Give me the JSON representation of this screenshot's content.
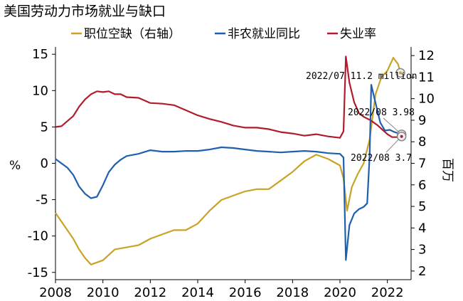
{
  "chart_data": {
    "type": "line",
    "title": "美国劳动力市场就业与缺口",
    "legend": {
      "placement": "top",
      "items": [
        {
          "name": "职位空缺（右轴）",
          "color": "#c9a227"
        },
        {
          "name": "非农就业同比",
          "color": "#1f5fad"
        },
        {
          "name": "失业率",
          "color": "#b01c2e"
        }
      ]
    },
    "x_axis": {
      "range": [
        2008,
        2023
      ],
      "ticks": [
        "2008",
        "2010",
        "2012",
        "2014",
        "2016",
        "2018",
        "2020",
        "2022"
      ]
    },
    "y_left": {
      "label": "%",
      "range": [
        -16,
        16
      ],
      "ticks": [
        "15",
        "10",
        "5",
        "0",
        "-5",
        "-10",
        "-15"
      ]
    },
    "y_right": {
      "label": "百万",
      "range": [
        1.6,
        12.4
      ],
      "ticks": [
        "12",
        "11",
        "10",
        "9",
        "8",
        "7",
        "6",
        "5",
        "4",
        "3",
        "2"
      ]
    },
    "series": [
      {
        "name": "失业率",
        "axis": "left",
        "color": "#b01c2e",
        "points": [
          [
            2008.0,
            5.0
          ],
          [
            2008.25,
            5.1
          ],
          [
            2008.5,
            5.8
          ],
          [
            2008.75,
            6.5
          ],
          [
            2009.0,
            7.8
          ],
          [
            2009.25,
            8.8
          ],
          [
            2009.5,
            9.5
          ],
          [
            2009.75,
            9.9
          ],
          [
            2010.0,
            9.8
          ],
          [
            2010.25,
            9.9
          ],
          [
            2010.5,
            9.5
          ],
          [
            2010.75,
            9.5
          ],
          [
            2011.0,
            9.1
          ],
          [
            2011.5,
            9.0
          ],
          [
            2012.0,
            8.3
          ],
          [
            2012.5,
            8.2
          ],
          [
            2013.0,
            8.0
          ],
          [
            2013.5,
            7.3
          ],
          [
            2014.0,
            6.6
          ],
          [
            2014.5,
            6.1
          ],
          [
            2015.0,
            5.7
          ],
          [
            2015.5,
            5.2
          ],
          [
            2016.0,
            4.9
          ],
          [
            2016.5,
            4.9
          ],
          [
            2017.0,
            4.7
          ],
          [
            2017.5,
            4.3
          ],
          [
            2018.0,
            4.1
          ],
          [
            2018.5,
            3.8
          ],
          [
            2019.0,
            4.0
          ],
          [
            2019.5,
            3.7
          ],
          [
            2020.0,
            3.5
          ],
          [
            2020.15,
            4.4
          ],
          [
            2020.25,
            14.7
          ],
          [
            2020.4,
            11.1
          ],
          [
            2020.6,
            8.4
          ],
          [
            2020.8,
            6.9
          ],
          [
            2021.0,
            6.4
          ],
          [
            2021.3,
            5.9
          ],
          [
            2021.6,
            5.2
          ],
          [
            2021.8,
            4.6
          ],
          [
            2022.0,
            4.0
          ],
          [
            2022.2,
            3.6
          ],
          [
            2022.4,
            3.6
          ],
          [
            2022.6,
            3.7
          ]
        ]
      },
      {
        "name": "非农就业同比",
        "axis": "left",
        "color": "#1f5fad",
        "points": [
          [
            2008.0,
            0.6
          ],
          [
            2008.25,
            0.0
          ],
          [
            2008.5,
            -0.6
          ],
          [
            2008.75,
            -1.6
          ],
          [
            2009.0,
            -3.2
          ],
          [
            2009.25,
            -4.2
          ],
          [
            2009.5,
            -4.8
          ],
          [
            2009.75,
            -4.6
          ],
          [
            2010.0,
            -3.0
          ],
          [
            2010.25,
            -1.2
          ],
          [
            2010.5,
            -0.2
          ],
          [
            2010.75,
            0.5
          ],
          [
            2011.0,
            1.0
          ],
          [
            2011.5,
            1.3
          ],
          [
            2012.0,
            1.8
          ],
          [
            2012.5,
            1.6
          ],
          [
            2013.0,
            1.6
          ],
          [
            2013.5,
            1.7
          ],
          [
            2014.0,
            1.7
          ],
          [
            2014.5,
            1.9
          ],
          [
            2015.0,
            2.2
          ],
          [
            2015.5,
            2.1
          ],
          [
            2016.0,
            1.9
          ],
          [
            2016.5,
            1.7
          ],
          [
            2017.0,
            1.6
          ],
          [
            2017.5,
            1.5
          ],
          [
            2018.0,
            1.6
          ],
          [
            2018.5,
            1.7
          ],
          [
            2019.0,
            1.6
          ],
          [
            2019.5,
            1.4
          ],
          [
            2020.0,
            1.3
          ],
          [
            2020.15,
            0.8
          ],
          [
            2020.25,
            -13.3
          ],
          [
            2020.4,
            -8.5
          ],
          [
            2020.6,
            -6.9
          ],
          [
            2020.8,
            -6.3
          ],
          [
            2021.0,
            -6.0
          ],
          [
            2021.15,
            -5.5
          ],
          [
            2021.25,
            1.0
          ],
          [
            2021.32,
            10.8
          ],
          [
            2021.45,
            9.0
          ],
          [
            2021.7,
            5.6
          ],
          [
            2021.9,
            4.5
          ],
          [
            2022.1,
            4.6
          ],
          [
            2022.3,
            4.3
          ],
          [
            2022.6,
            3.98
          ]
        ]
      },
      {
        "name": "职位空缺（右轴）",
        "axis": "right",
        "color": "#c9a227",
        "points": [
          [
            2008.0,
            4.7
          ],
          [
            2008.25,
            4.3
          ],
          [
            2008.5,
            3.9
          ],
          [
            2008.75,
            3.5
          ],
          [
            2009.0,
            3.0
          ],
          [
            2009.25,
            2.6
          ],
          [
            2009.5,
            2.3
          ],
          [
            2009.75,
            2.4
          ],
          [
            2010.0,
            2.5
          ],
          [
            2010.5,
            3.0
          ],
          [
            2011.0,
            3.1
          ],
          [
            2011.5,
            3.2
          ],
          [
            2012.0,
            3.5
          ],
          [
            2012.5,
            3.7
          ],
          [
            2013.0,
            3.9
          ],
          [
            2013.5,
            3.9
          ],
          [
            2014.0,
            4.2
          ],
          [
            2014.5,
            4.8
          ],
          [
            2015.0,
            5.3
          ],
          [
            2015.5,
            5.5
          ],
          [
            2016.0,
            5.7
          ],
          [
            2016.5,
            5.8
          ],
          [
            2017.0,
            5.8
          ],
          [
            2017.5,
            6.2
          ],
          [
            2018.0,
            6.6
          ],
          [
            2018.5,
            7.1
          ],
          [
            2019.0,
            7.4
          ],
          [
            2019.5,
            7.2
          ],
          [
            2020.0,
            6.9
          ],
          [
            2020.15,
            6.3
          ],
          [
            2020.3,
            4.8
          ],
          [
            2020.5,
            5.9
          ],
          [
            2020.75,
            6.5
          ],
          [
            2021.0,
            7.0
          ],
          [
            2021.25,
            8.1
          ],
          [
            2021.5,
            10.2
          ],
          [
            2021.75,
            11.0
          ],
          [
            2022.0,
            11.3
          ],
          [
            2022.25,
            11.9
          ],
          [
            2022.45,
            11.6
          ],
          [
            2022.55,
            11.2
          ]
        ]
      }
    ],
    "annotations": [
      {
        "text": "2022/07 11.2 million",
        "series": "职位空缺（右轴）",
        "x": 2022.55,
        "y": 11.2
      },
      {
        "text": "2022/08 3.98",
        "series": "非农就业同比",
        "x": 2022.6,
        "y": 3.98
      },
      {
        "text": "2022/08 3.7",
        "series": "失业率",
        "x": 2022.6,
        "y": 3.7
      }
    ]
  }
}
